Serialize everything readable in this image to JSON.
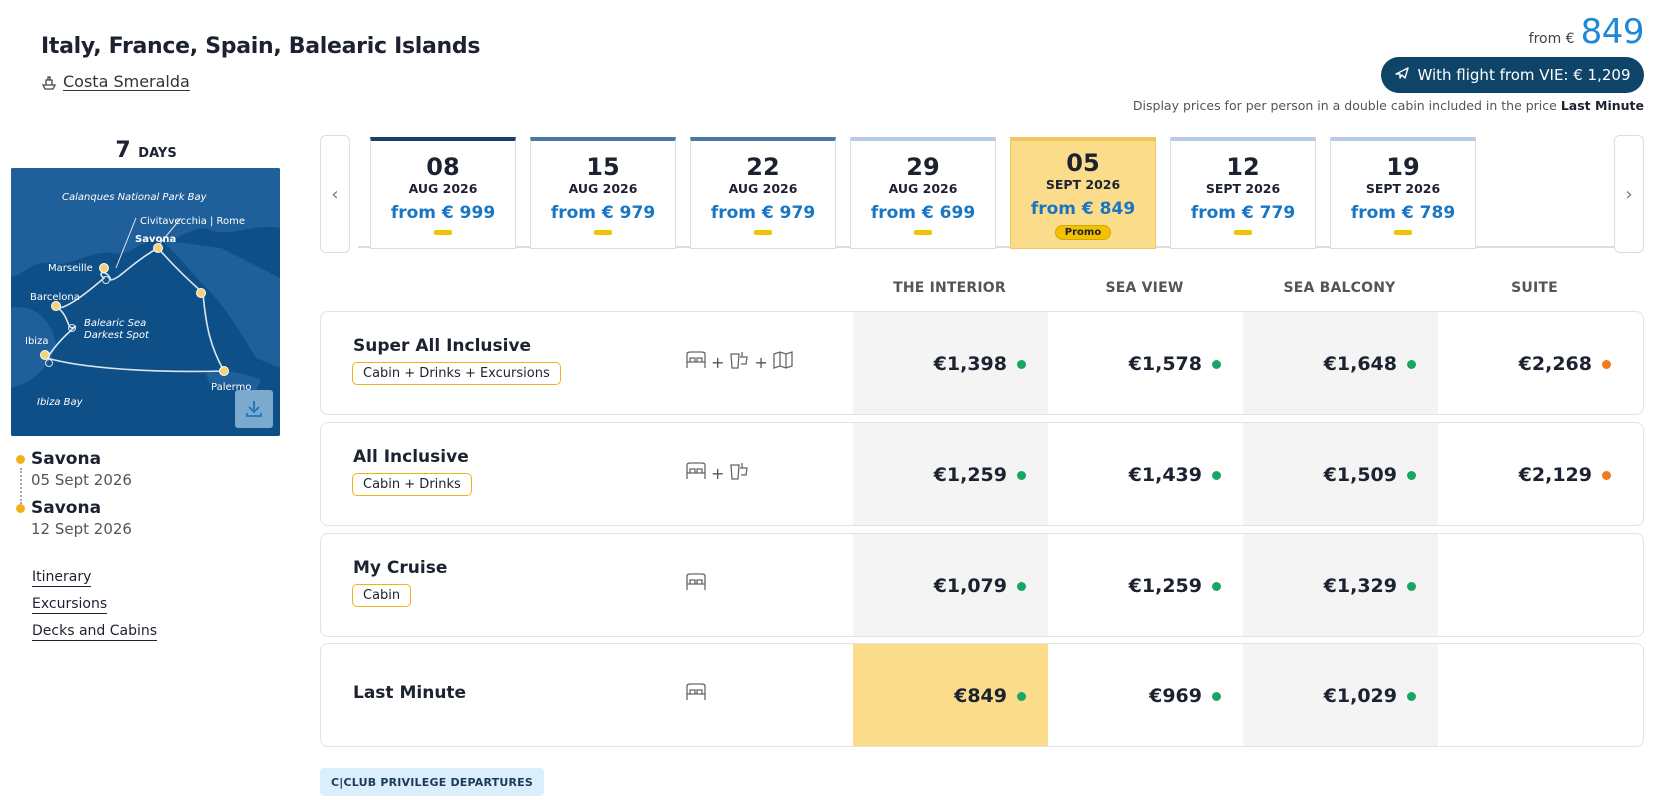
{
  "header": {
    "title": "Italy, France, Spain, Balearic Islands",
    "ship_name": "Costa Smeralda",
    "from_label": "from €",
    "from_amount": "849",
    "flight_button": "With flight from VIE: € 1,209",
    "display_note_prefix": "Display prices for per person in a double cabin included in the price",
    "display_note_bold": "Last Minute"
  },
  "sidebar": {
    "days_count": "7",
    "days_label": "DAYS",
    "map_labels": {
      "calanques": "Calanques National Park Bay",
      "civitavecchia": "Civitavecchia | Rome",
      "savona": "Savona",
      "marseille": "Marseille",
      "barcelona": "Barcelona",
      "balearic": "Balearic Sea",
      "darkest": "Darkest Spot",
      "ibiza": "Ibiza",
      "ibiza_bay": "Ibiza Bay",
      "palermo": "Palermo"
    },
    "ports": [
      {
        "name": "Savona",
        "date": "05 Sept 2026"
      },
      {
        "name": "Savona",
        "date": "12 Sept 2026"
      }
    ],
    "links": [
      "Itinerary",
      "Excursions",
      "Decks and Cabins"
    ]
  },
  "dates": [
    {
      "day": "08",
      "month": "AUG 2026",
      "price": "from € 999",
      "promo": ""
    },
    {
      "day": "15",
      "month": "AUG 2026",
      "price": "from € 979",
      "promo": ""
    },
    {
      "day": "22",
      "month": "AUG 2026",
      "price": "from € 979",
      "promo": ""
    },
    {
      "day": "29",
      "month": "AUG 2026",
      "price": "from € 699",
      "promo": ""
    },
    {
      "day": "05",
      "month": "SEPT 2026",
      "price": "from € 849",
      "promo": "Promo"
    },
    {
      "day": "12",
      "month": "SEPT 2026",
      "price": "from € 779",
      "promo": ""
    },
    {
      "day": "19",
      "month": "SEPT 2026",
      "price": "from € 789",
      "promo": ""
    }
  ],
  "columns": [
    "THE INTERIOR",
    "SEA VIEW",
    "SEA BALCONY",
    "SUITE"
  ],
  "packages": [
    {
      "name": "Super All Inclusive",
      "tag": "Cabin + Drinks + Excursions",
      "icons": [
        "bed-icon",
        "drinks-icon",
        "map-icon"
      ],
      "prices": [
        "€1,398",
        "€1,578",
        "€1,648",
        "€2,268"
      ],
      "status": [
        "green",
        "green",
        "green",
        "orange"
      ]
    },
    {
      "name": "All Inclusive",
      "tag": "Cabin + Drinks",
      "icons": [
        "bed-icon",
        "drinks-icon"
      ],
      "prices": [
        "€1,259",
        "€1,439",
        "€1,509",
        "€2,129"
      ],
      "status": [
        "green",
        "green",
        "green",
        "orange"
      ]
    },
    {
      "name": "My Cruise",
      "tag": "Cabin",
      "icons": [
        "bed-icon"
      ],
      "prices": [
        "€1,079",
        "€1,259",
        "€1,329",
        ""
      ],
      "status": [
        "green",
        "green",
        "green",
        ""
      ]
    },
    {
      "name": "Last Minute",
      "tag": "",
      "icons": [
        "bed-icon"
      ],
      "prices": [
        "€849",
        "€969",
        "€1,029",
        ""
      ],
      "status": [
        "green",
        "green",
        "green",
        ""
      ]
    }
  ],
  "status_colors": {
    "green": "#19a565",
    "orange": "#f07a1a"
  },
  "club_label": "C|CLUB PRIVILEGE DEPARTURES"
}
